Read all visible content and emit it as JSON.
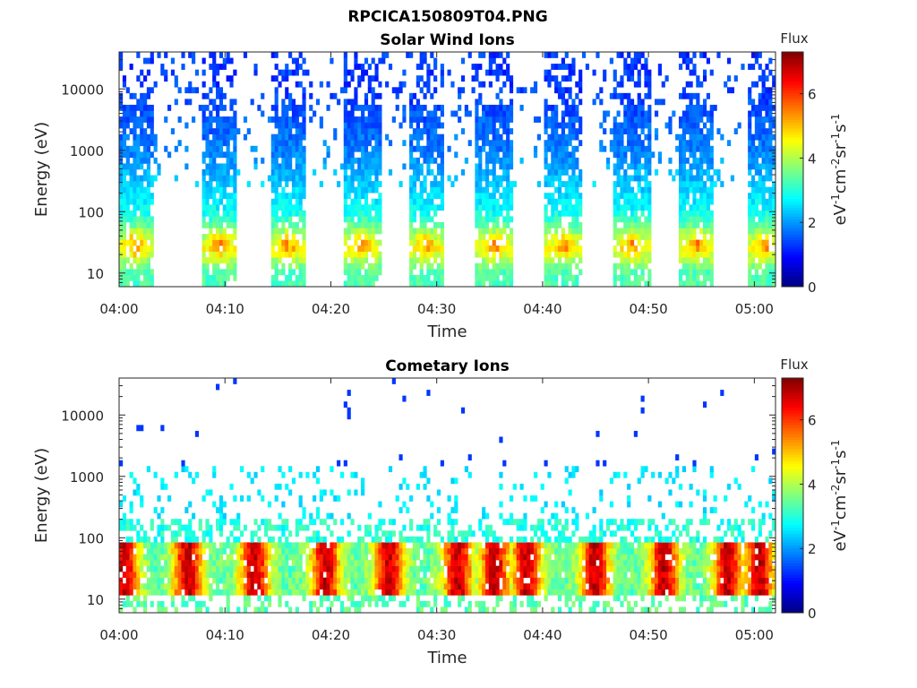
{
  "figure_title": "RPCICA150809T04.PNG",
  "chart_data": [
    {
      "type": "heatmap",
      "title": "Solar Wind Ions",
      "xlabel": "Time",
      "ylabel": "Energy (eV)",
      "x_ticks": [
        "04:00",
        "04:10",
        "04:20",
        "04:30",
        "04:40",
        "04:50",
        "05:00"
      ],
      "y_ticks": [
        "10",
        "100",
        "1000",
        "10000"
      ],
      "y_scale": "log",
      "ylim": [
        6,
        40000
      ],
      "xlim": [
        "04:00",
        "05:02"
      ],
      "colorbar": {
        "title": "Flux",
        "label": "eV-1cm-2sr-1s-1",
        "ticks": [
          "0",
          "2",
          "4",
          "6"
        ],
        "range": [
          0,
          7.3
        ],
        "colormap": "jet"
      },
      "pattern": {
        "kind": "pulsed",
        "pulse_centers_min": [
          1.5,
          9.5,
          16.0,
          23.0,
          29.0,
          35.5,
          42.0,
          48.5,
          54.5,
          61.0
        ],
        "pulse_width_min": 3.5,
        "background": "sparse counts between pulses above ~300 eV",
        "flux_levels": [
          {
            "energy_eV": 10,
            "flux": 3.3
          },
          {
            "energy_eV": 25,
            "flux": 4.5
          },
          {
            "energy_eV": 100,
            "flux": 2.8
          },
          {
            "energy_eV": 1000,
            "flux": 1.8
          },
          {
            "energy_eV": 10000,
            "flux": 1.3
          }
        ],
        "peak_flux": 5.6,
        "peak_energy_eV": 30
      }
    },
    {
      "type": "heatmap",
      "title": "Cometary Ions",
      "xlabel": "Time",
      "ylabel": "Energy (eV)",
      "x_ticks": [
        "04:00",
        "04:10",
        "04:20",
        "04:30",
        "04:40",
        "04:50",
        "05:00"
      ],
      "y_ticks": [
        "10",
        "100",
        "1000",
        "10000"
      ],
      "y_scale": "log",
      "ylim": [
        6,
        40000
      ],
      "xlim": [
        "04:00",
        "05:02"
      ],
      "colorbar": {
        "title": "Flux",
        "label": "eV-1cm-2sr-1s-1",
        "ticks": [
          "0",
          "2",
          "4",
          "6"
        ],
        "range": [
          0,
          7.3
        ],
        "colormap": "jet"
      },
      "pattern": {
        "kind": "banded",
        "band_low_eV": 12,
        "band_high_eV": 80,
        "band_peak_flux": 6.8,
        "band_mid_flux": 5.0,
        "hotspot_centers_min": [
          0.5,
          6.5,
          12.8,
          19.5,
          25.5,
          32.0,
          35.5,
          38.5,
          45.0,
          51.5,
          57.5,
          60.5
        ],
        "scatter_upper_eV": 1500,
        "scatter_flux": 2.6,
        "sparse_high_flux": 1.3
      }
    }
  ]
}
